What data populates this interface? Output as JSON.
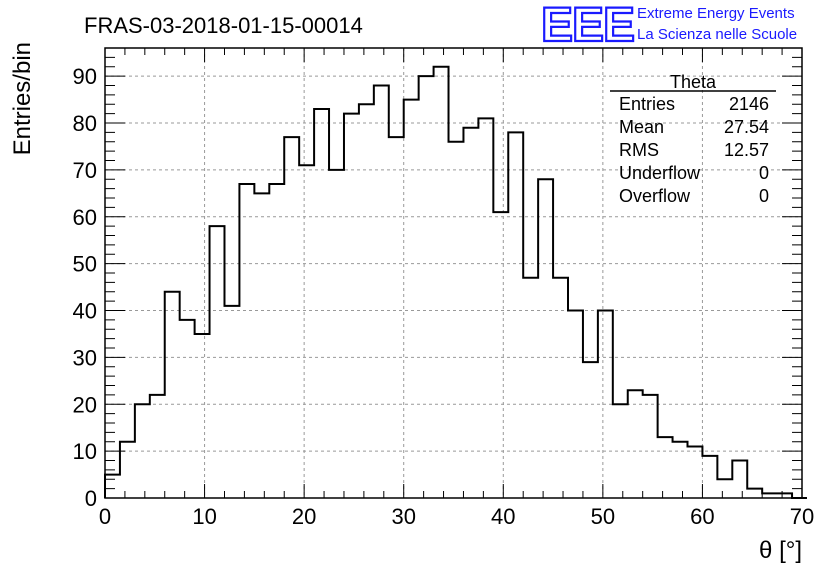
{
  "header": {
    "title": "FRAS-03-2018-01-15-00014",
    "logo_text": "EEE",
    "logo_line1": "Extreme Energy Events",
    "logo_line2": "La Scienza nelle Scuole"
  },
  "stats": {
    "name": "Theta",
    "rows": [
      {
        "label": "Entries",
        "value": "2146"
      },
      {
        "label": "Mean",
        "value": "27.54"
      },
      {
        "label": "RMS",
        "value": "12.57"
      },
      {
        "label": "Underflow",
        "value": "0"
      },
      {
        "label": "Overflow",
        "value": "0"
      }
    ]
  },
  "colors": {
    "logo": "#1a1aff",
    "line": "#000000",
    "grid": "#999999"
  },
  "chart_data": {
    "type": "bar",
    "title": "FRAS-03-2018-01-15-00014",
    "xlabel": "θ [°]",
    "ylabel": "Entries/bin",
    "xlim": [
      0,
      70
    ],
    "ylim": [
      0,
      96
    ],
    "grid": true,
    "legend": "top-right",
    "bin_width": 1.5,
    "x_start": 0,
    "values": [
      5,
      12,
      20,
      22,
      44,
      38,
      35,
      58,
      41,
      67,
      65,
      67,
      77,
      71,
      83,
      70,
      82,
      84,
      88,
      77,
      85,
      90,
      92,
      76,
      79,
      81,
      61,
      78,
      47,
      68,
      47,
      40,
      29,
      40,
      20,
      23,
      22,
      13,
      12,
      11,
      9,
      4,
      8,
      2,
      1,
      1,
      0
    ],
    "xticks": [
      "0",
      "10",
      "20",
      "30",
      "40",
      "50",
      "60",
      "70"
    ],
    "yticks": [
      "0",
      "10",
      "20",
      "30",
      "40",
      "50",
      "60",
      "70",
      "80",
      "90"
    ]
  }
}
